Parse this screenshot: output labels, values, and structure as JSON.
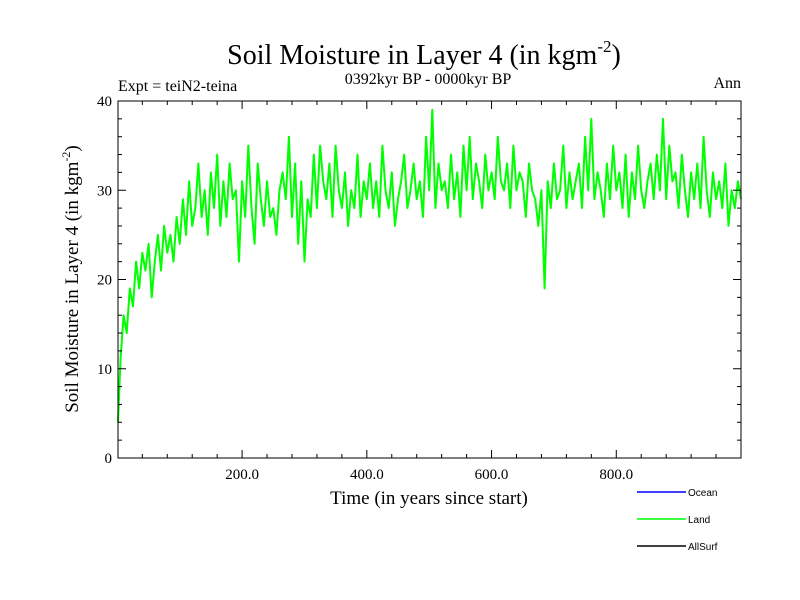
{
  "chart_data": {
    "type": "line",
    "title": "Soil Moisture in Layer 4 (in kgm",
    "title_superscript": "-2",
    "title_close": ")",
    "subtitle": "0392kyr BP - 0000kyr BP",
    "experiment_label": "Expt = teiN2-teina",
    "season_label": "Ann",
    "xlabel": "Time (in years since start)",
    "ylabel": "Soil Moisture in Layer 4 (in kgm",
    "ylabel_superscript": "-2",
    "ylabel_close": ")",
    "xlim": [
      1,
      1000
    ],
    "ylim": [
      0,
      40
    ],
    "x_ticks": [
      {
        "value": 200,
        "label": "200.0"
      },
      {
        "value": 400,
        "label": "400.0"
      },
      {
        "value": 600,
        "label": "600.0"
      },
      {
        "value": 800,
        "label": "800.0"
      }
    ],
    "y_ticks": [
      {
        "value": 0,
        "label": "0"
      },
      {
        "value": 10,
        "label": "10"
      },
      {
        "value": 20,
        "label": "20"
      },
      {
        "value": 30,
        "label": "30"
      },
      {
        "value": 40,
        "label": "40"
      }
    ],
    "legend": [
      {
        "name": "Ocean",
        "color": "#0000ff"
      },
      {
        "name": "Land",
        "color": "#00ff00"
      },
      {
        "name": "AllSurf",
        "color": "#000000"
      }
    ],
    "series": [
      {
        "name": "Land",
        "color": "#00ff00",
        "x": [
          1,
          5,
          10,
          15,
          20,
          25,
          30,
          35,
          40,
          45,
          50,
          55,
          60,
          65,
          70,
          75,
          80,
          85,
          90,
          95,
          100,
          105,
          110,
          115,
          120,
          125,
          130,
          135,
          140,
          145,
          150,
          155,
          160,
          165,
          170,
          175,
          180,
          185,
          190,
          195,
          200,
          205,
          210,
          215,
          220,
          225,
          230,
          235,
          240,
          245,
          250,
          255,
          260,
          265,
          270,
          275,
          280,
          285,
          290,
          295,
          300,
          305,
          310,
          315,
          320,
          325,
          330,
          335,
          340,
          345,
          350,
          355,
          360,
          365,
          370,
          375,
          380,
          385,
          390,
          395,
          400,
          405,
          410,
          415,
          420,
          425,
          430,
          435,
          440,
          445,
          450,
          455,
          460,
          465,
          470,
          475,
          480,
          485,
          490,
          495,
          500,
          505,
          510,
          515,
          520,
          525,
          530,
          535,
          540,
          545,
          550,
          555,
          560,
          565,
          570,
          575,
          580,
          585,
          590,
          595,
          600,
          605,
          610,
          615,
          620,
          625,
          630,
          635,
          640,
          645,
          650,
          655,
          660,
          665,
          670,
          675,
          680,
          685,
          690,
          695,
          700,
          705,
          710,
          715,
          720,
          725,
          730,
          735,
          740,
          745,
          750,
          755,
          760,
          765,
          770,
          775,
          780,
          785,
          790,
          795,
          800,
          805,
          810,
          815,
          820,
          825,
          830,
          835,
          840,
          845,
          850,
          855,
          860,
          865,
          870,
          875,
          880,
          885,
          890,
          895,
          900,
          905,
          910,
          915,
          920,
          925,
          930,
          935,
          940,
          945,
          950,
          955,
          960,
          965,
          970,
          975,
          980,
          985,
          990,
          995,
          1000
        ],
        "values": [
          4,
          11,
          16,
          14,
          19,
          17,
          22,
          19,
          23,
          21,
          24,
          18,
          22,
          25,
          21,
          26,
          23,
          25,
          22,
          27,
          24,
          29,
          25,
          31,
          26,
          28,
          33,
          27,
          30,
          25,
          32,
          28,
          34,
          26,
          31,
          27,
          33,
          29,
          30,
          22,
          31,
          27,
          35,
          28,
          24,
          33,
          29,
          26,
          31,
          27,
          28,
          25,
          30,
          32,
          29,
          36,
          27,
          33,
          24,
          31,
          22,
          29,
          27,
          34,
          28,
          35,
          31,
          29,
          33,
          27,
          35,
          30,
          28,
          32,
          26,
          30,
          28,
          34,
          27,
          31,
          29,
          33,
          28,
          31,
          27,
          35,
          30,
          28,
          32,
          26,
          29,
          31,
          34,
          28,
          30,
          33,
          29,
          31,
          27,
          36,
          30,
          39,
          28,
          33,
          30,
          31,
          28,
          34,
          29,
          32,
          27,
          35,
          30,
          36,
          29,
          33,
          31,
          28,
          34,
          30,
          32,
          29,
          36,
          31,
          30,
          33,
          28,
          35,
          30,
          32,
          31,
          27,
          33,
          30,
          29,
          26,
          30,
          19,
          31,
          28,
          33,
          29,
          30,
          35,
          28,
          32,
          29,
          31,
          33,
          28,
          36,
          30,
          38,
          29,
          32,
          30,
          27,
          33,
          29,
          35,
          30,
          32,
          28,
          34,
          27,
          32,
          29,
          35,
          30,
          28,
          31,
          33,
          29,
          34,
          30,
          38,
          29,
          35,
          31,
          32,
          28,
          34,
          30,
          27,
          32,
          29,
          33,
          28,
          36,
          30,
          27,
          32,
          29,
          31,
          28,
          33,
          26,
          30,
          28,
          31,
          29
        ]
      }
    ]
  }
}
